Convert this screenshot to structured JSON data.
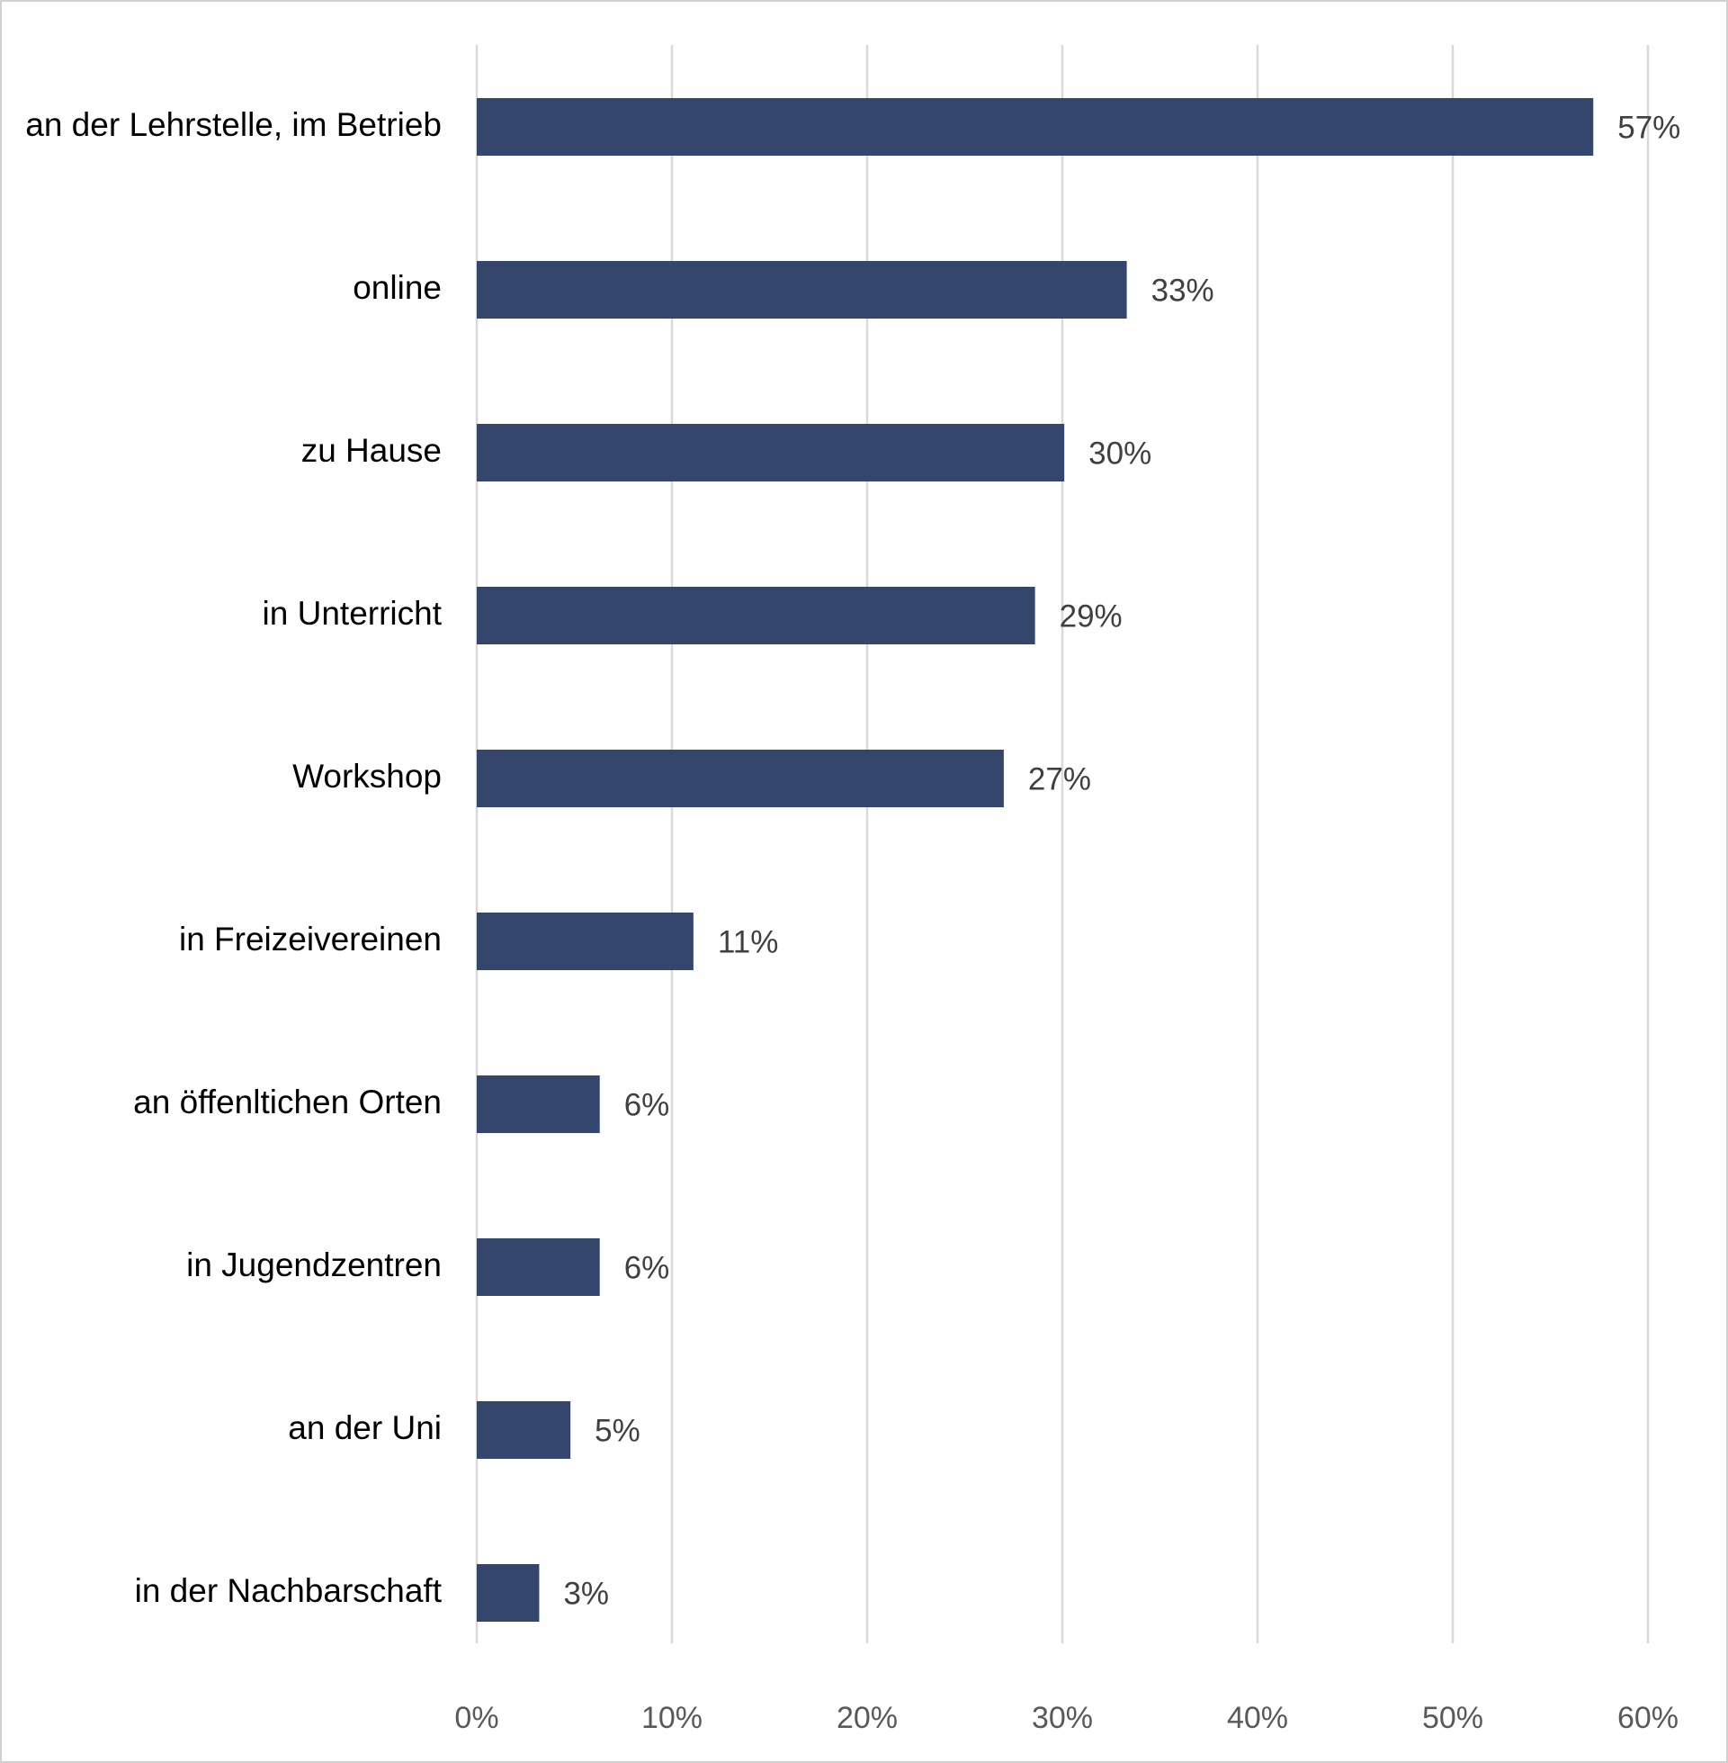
{
  "chart_data": {
    "type": "bar",
    "orientation": "horizontal",
    "categories": [
      "an der Lehrstelle, im Betrieb",
      "online",
      "zu Hause",
      "in Unterricht",
      "Workshop",
      "in Freizeivereinen",
      "an öffenltichen Orten",
      "in Jugendzentren",
      "an der Uni",
      "in der Nachbarschaft"
    ],
    "values": [
      57.2,
      33.3,
      30.1,
      28.6,
      27,
      11.1,
      6.3,
      6.3,
      4.8,
      3.2
    ],
    "value_labels": [
      "57%",
      "33%",
      "30%",
      "29%",
      "27%",
      "11%",
      "6%",
      "6%",
      "5%",
      "3%"
    ],
    "color": "#34466b",
    "xlim": [
      0,
      60
    ],
    "xticks": [
      {
        "value": 0,
        "label": "0%"
      },
      {
        "value": 10,
        "label": "10%"
      },
      {
        "value": 20,
        "label": "20%"
      },
      {
        "value": 30,
        "label": "30%"
      },
      {
        "value": 40,
        "label": "40%"
      },
      {
        "value": 50,
        "label": "50%"
      },
      {
        "value": 60,
        "label": "60%"
      }
    ],
    "grid": true
  }
}
